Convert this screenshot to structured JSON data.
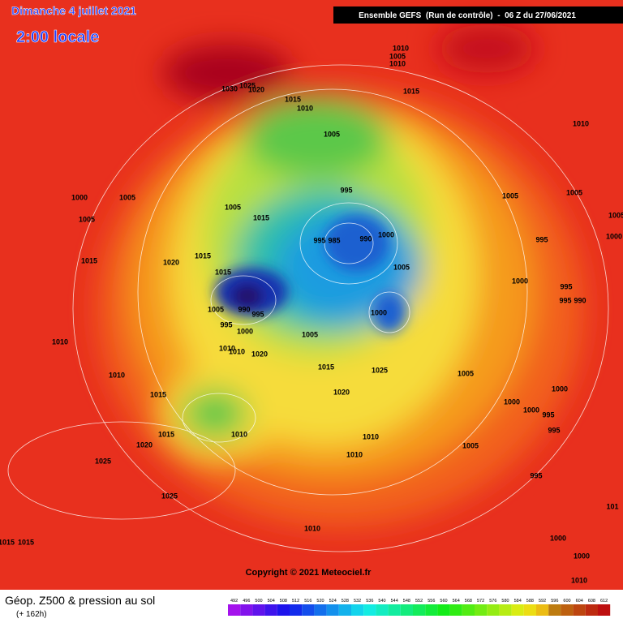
{
  "header": {
    "title": "Dimanche 4 juillet 2021",
    "subtitle": "2:00 locale",
    "run": "Ensemble GEFS  (Run de contrôle)  -  06 Z du 27/06/2021"
  },
  "isobar_labels": [
    "1010",
    "1005",
    "1010",
    "1015",
    "1030",
    "1025",
    "1020",
    "1015",
    "1010",
    "1005",
    "1010",
    "995",
    "1005",
    "1015",
    "1000",
    "1005",
    "1005",
    "1005",
    "1005",
    "1005",
    "995",
    "985",
    "990",
    "1000",
    "995",
    "1000",
    "1015",
    "1020",
    "1015",
    "1015",
    "1005",
    "1000",
    "995",
    "995",
    "990",
    "1005",
    "990",
    "995",
    "1000",
    "995",
    "1000",
    "1005",
    "1010",
    "1010",
    "1010",
    "1020",
    "1015",
    "1025",
    "1010",
    "1005",
    "1000",
    "1015",
    "1020",
    "1000",
    "1000",
    "995",
    "995",
    "1015",
    "1010",
    "1010",
    "1020",
    "1005",
    "1010",
    "1025",
    "995",
    "1025",
    "1015",
    "1015",
    "1010",
    "1000",
    "1000",
    "1010",
    "101"
  ],
  "copyright": "Copyright © 2021 Meteociel.fr",
  "footer": {
    "title": "Géop. Z500 & pression au sol",
    "lead": "(+ 162h)"
  },
  "colorbar": {
    "labels": [
      492,
      496,
      500,
      504,
      508,
      512,
      516,
      520,
      524,
      528,
      532,
      536,
      540,
      544,
      548,
      552,
      556,
      560,
      564,
      568,
      572,
      576,
      580,
      584,
      588,
      592,
      596,
      600,
      604,
      608,
      612
    ]
  }
}
